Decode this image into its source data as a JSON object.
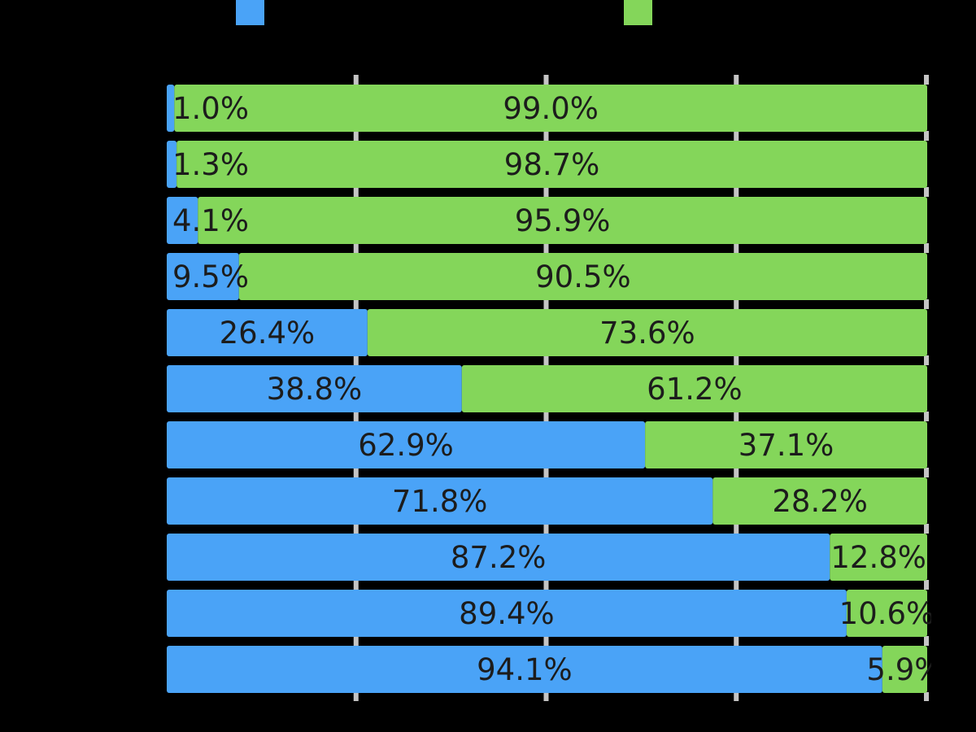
{
  "chart_data": {
    "type": "bar",
    "orientation": "horizontal",
    "stacked": "percent",
    "title": "",
    "xlabel": "",
    "ylabel": "",
    "xlim": [
      0,
      100
    ],
    "grid": true,
    "legend": "top",
    "categories": [
      "",
      "",
      "",
      "",
      "",
      "",
      "",
      "",
      "",
      "",
      ""
    ],
    "series": [
      {
        "color": "#4aa3f7",
        "values": [
          1.0,
          1.3,
          4.1,
          9.5,
          26.4,
          38.8,
          62.9,
          71.8,
          87.2,
          89.4,
          94.1
        ],
        "labels": [
          "1.0%",
          "1.3%",
          "4.1%",
          "9.5%",
          "26.4%",
          "38.8%",
          "62.9%",
          "71.8%",
          "87.2%",
          "89.4%",
          "94.1%"
        ]
      },
      {
        "color": "#84d65a",
        "values": [
          99.0,
          98.7,
          95.9,
          90.5,
          73.6,
          61.2,
          37.1,
          28.2,
          12.8,
          10.6,
          5.9
        ],
        "labels": [
          "99.0%",
          "98.7%",
          "95.9%",
          "90.5%",
          "73.6%",
          "61.2%",
          "37.1%",
          "28.2%",
          "12.8%",
          "10.6%",
          "5.9%"
        ]
      }
    ]
  }
}
